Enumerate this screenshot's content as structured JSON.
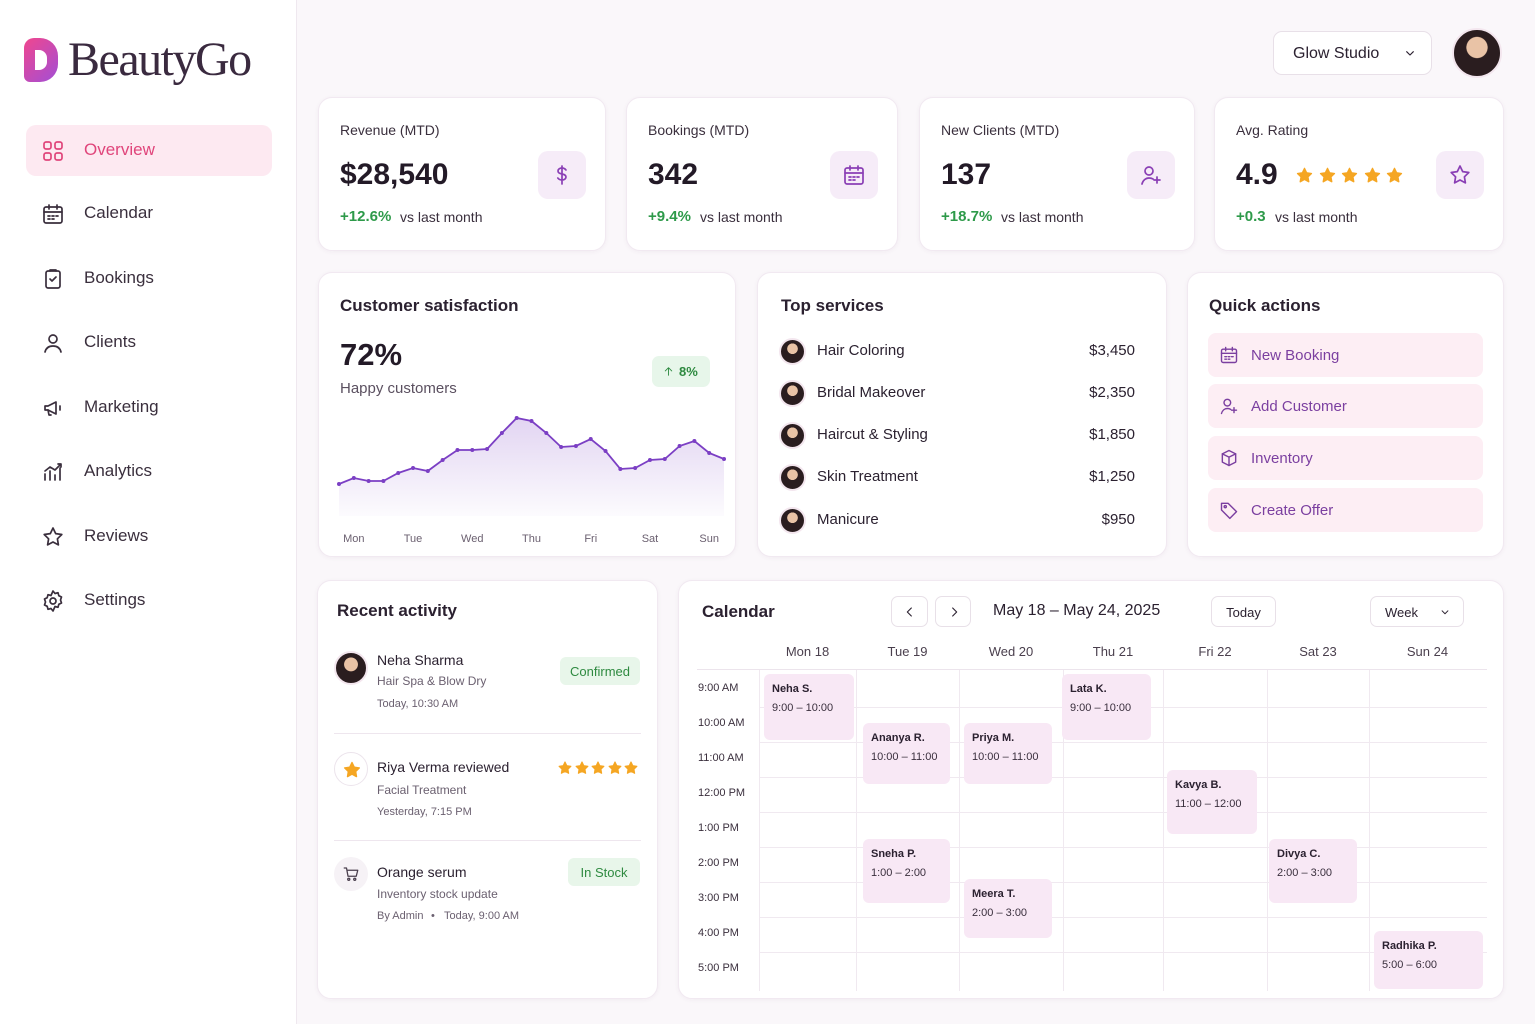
{
  "brand": "BeautyGo",
  "nav": [
    "Overview",
    "Calendar",
    "Bookings",
    "Clients",
    "Marketing",
    "Analytics",
    "Reviews",
    "Settings"
  ],
  "header": {
    "studio": "Glow Studio"
  },
  "kpis": [
    {
      "label": "Revenue (MTD)",
      "value": "$28,540",
      "change": "+12.6%",
      "note": "vs last month"
    },
    {
      "label": "Bookings (MTD)",
      "value": "342",
      "change": "+9.4%",
      "note": "vs last month"
    },
    {
      "label": "New Clients (MTD)",
      "value": "137",
      "change": "+18.7%",
      "note": "vs last month"
    },
    {
      "label": "Avg. Rating",
      "value": "4.9",
      "change": "+0.3",
      "note": "vs last month"
    }
  ],
  "satisfaction": {
    "title": "Customer satisfaction",
    "value": "72%",
    "subtitle": "Happy customers",
    "badge": "8%"
  },
  "chart_data": {
    "type": "area",
    "categories": [
      null,
      "Mon",
      null,
      null,
      null,
      "Tue",
      null,
      null,
      null,
      "Wed",
      null,
      null,
      null,
      "Thu",
      null,
      null,
      null,
      "Fri",
      null,
      null,
      null,
      "Sat",
      null,
      null,
      null,
      "Sun",
      null
    ],
    "values": [
      17,
      23,
      20,
      20,
      28,
      33,
      30,
      41,
      51,
      51,
      52,
      68,
      83,
      80,
      68,
      54,
      55,
      62,
      50,
      32,
      33,
      41,
      42,
      55,
      60,
      48,
      42
    ],
    "ylim": [
      0,
      100
    ],
    "color": "#7b3fc4"
  },
  "top_services": {
    "title": "Top services",
    "items": [
      {
        "name": "Hair Coloring",
        "amount": "$3,450"
      },
      {
        "name": "Bridal Makeover",
        "amount": "$2,350"
      },
      {
        "name": "Haircut & Styling",
        "amount": "$1,850"
      },
      {
        "name": "Skin Treatment",
        "amount": "$1,250"
      },
      {
        "name": "Manicure",
        "amount": "$950"
      }
    ]
  },
  "quick_actions": {
    "title": "Quick actions",
    "items": [
      "New Booking",
      "Add Customer",
      "Inventory",
      "Create Offer"
    ]
  },
  "recent_activity": {
    "title": "Recent activity",
    "items": [
      {
        "title": "Neha Sharma",
        "detail": "Hair Spa & Blow Dry",
        "time": "Today, 10:30 AM",
        "status": "Confirmed"
      },
      {
        "title": "Riya Verma reviewed",
        "detail": "Facial Treatment",
        "time": "Yesterday, 7:15 PM"
      },
      {
        "title": "Orange serum",
        "detail": "Inventory stock update",
        "by": "By Admin",
        "time": "Today, 9:00 AM",
        "status": "In Stock"
      }
    ]
  },
  "calendar": {
    "title": "Calendar",
    "range": "May 18 – May 24, 2025",
    "today": "Today",
    "view": "Week",
    "days": [
      "Mon 18",
      "Tue 19",
      "Wed 20",
      "Thu 21",
      "Fri 22",
      "Sat 23",
      "Sun 24"
    ],
    "times": [
      "9:00 AM",
      "10:00 AM",
      "11:00 AM",
      "12:00 PM",
      "1:00 PM",
      "2:00 PM",
      "3:00 PM",
      "4:00 PM",
      "5:00 PM"
    ],
    "events": [
      {
        "name": "Neha S.",
        "time": "9:00 – 10:00"
      },
      {
        "name": "Ananya R.",
        "time": "10:00 – 11:00"
      },
      {
        "name": "Priya M.",
        "time": "10:00 – 11:00"
      },
      {
        "name": "Lata K.",
        "time": "9:00 – 10:00"
      },
      {
        "name": "Kavya B.",
        "time": "11:00 – 12:00"
      },
      {
        "name": "Sneha P.",
        "time": "1:00 – 2:00"
      },
      {
        "name": "Meera T.",
        "time": "2:00 – 3:00"
      },
      {
        "name": "Divya C.",
        "time": "2:00 – 3:00"
      },
      {
        "name": "Radhika P.",
        "time": "5:00 – 6:00"
      }
    ]
  }
}
